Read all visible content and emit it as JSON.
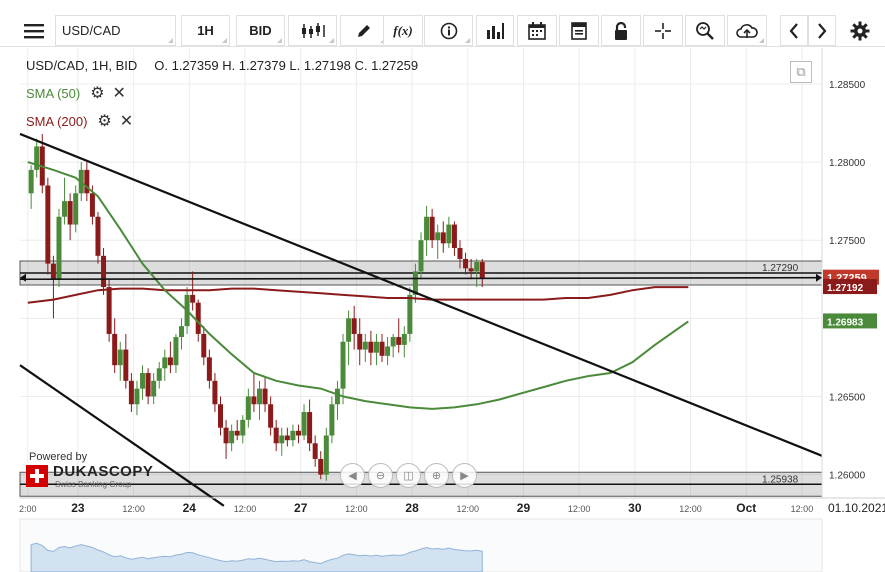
{
  "toolbar": {
    "symbol": "USD/CAD",
    "timeframe": "1H",
    "price_type": "BID",
    "function_label": "f(x)"
  },
  "header": {
    "title": "USD/CAD, 1H, BID",
    "ohlc": "O. 1.27359 H. 1.27379 L. 1.27198 C. 1.27259"
  },
  "indicators": [
    {
      "label": "SMA (50)",
      "color": "#4a8a3a"
    },
    {
      "label": "SMA (200)",
      "color": "#8b1a1a"
    }
  ],
  "branding": {
    "powered_by": "Powered by",
    "name": "DUKASCOPY",
    "tagline": "Swiss Banking Group"
  },
  "colors": {
    "bull": "#4a8a3a",
    "bear": "#8b1a1a",
    "sma50": "#4a8a3a",
    "sma200": "#8b1a1a",
    "last_price_bg": "#c0392b",
    "sma50_badge_bg": "#4a8a3a",
    "sma200_badge_bg": "#8b1a1a"
  },
  "chart_data": {
    "type": "candlestick",
    "title": "USD/CAD, 1H, BID",
    "ylim": [
      1.2585,
      1.2873
    ],
    "y_ticks": [
      "1.28500",
      "1.28000",
      "1.27500",
      "1.27000",
      "1.26500",
      "1.26000"
    ],
    "y_tick_values": [
      1.285,
      1.28,
      1.275,
      1.27,
      1.265,
      1.26
    ],
    "x_labels": [
      "2:00",
      "23",
      "12:00",
      "24",
      "12:00",
      "27",
      "12:00",
      "28",
      "12:00",
      "29",
      "12:00",
      "30",
      "12:00",
      "Oct",
      "12:00",
      "01.10.2021"
    ],
    "x_label_times": [
      0.7,
      5.2,
      10.2,
      15.2,
      20.2,
      25.2,
      30.2,
      35.2,
      40.2,
      45.2,
      50.2,
      55.2,
      60.2,
      65.2,
      70.2,
      71.5
    ],
    "x_range": [
      0,
      72
    ],
    "horizontal_levels": [
      {
        "label": "1.27290",
        "value": 1.2729
      },
      {
        "label": "1.25938",
        "value": 1.25938
      }
    ],
    "price_badges": {
      "last": "1.27259",
      "sma200": "1.27192",
      "sma50": "1.26983"
    },
    "trend_lines": [
      {
        "from": [
          0,
          1.2818
        ],
        "to": [
          72,
          1.2612
        ]
      },
      {
        "from": [
          0,
          1.267
        ],
        "to": [
          18.3,
          1.258
        ]
      },
      {
        "from": [
          0,
          1.2725
        ],
        "to": [
          72,
          1.2726
        ]
      }
    ],
    "sma50": [
      [
        0.7,
        1.28
      ],
      [
        3,
        1.2795
      ],
      [
        5,
        1.279
      ],
      [
        7,
        1.2778
      ],
      [
        9,
        1.2757
      ],
      [
        11,
        1.2735
      ],
      [
        13,
        1.2718
      ],
      [
        15,
        1.2705
      ],
      [
        17,
        1.269
      ],
      [
        19,
        1.2677
      ],
      [
        21,
        1.2665
      ],
      [
        23,
        1.266
      ],
      [
        25,
        1.2657
      ],
      [
        27,
        1.2655
      ],
      [
        29,
        1.265
      ],
      [
        31,
        1.2647
      ],
      [
        33,
        1.2645
      ],
      [
        35,
        1.2643
      ],
      [
        37,
        1.2642
      ],
      [
        39,
        1.2643
      ],
      [
        41,
        1.2645
      ],
      [
        43,
        1.2648
      ],
      [
        45,
        1.2652
      ],
      [
        47,
        1.2656
      ],
      [
        49,
        1.266
      ],
      [
        51,
        1.2663
      ],
      [
        53,
        1.2665
      ],
      [
        55,
        1.2672
      ],
      [
        57,
        1.2683
      ],
      [
        59,
        1.2693
      ],
      [
        60,
        1.2698
      ]
    ],
    "sma200": [
      [
        0.7,
        1.271
      ],
      [
        3,
        1.2712
      ],
      [
        5,
        1.2715
      ],
      [
        7,
        1.2718
      ],
      [
        9,
        1.2719
      ],
      [
        11,
        1.2719
      ],
      [
        13,
        1.2718
      ],
      [
        15,
        1.2718
      ],
      [
        17,
        1.2718
      ],
      [
        19,
        1.2719
      ],
      [
        21,
        1.2719
      ],
      [
        23,
        1.2718
      ],
      [
        25,
        1.2717
      ],
      [
        27,
        1.2716
      ],
      [
        29,
        1.2715
      ],
      [
        31,
        1.2714
      ],
      [
        33,
        1.2713
      ],
      [
        35,
        1.2713
      ],
      [
        37,
        1.2712
      ],
      [
        39,
        1.2712
      ],
      [
        41,
        1.2712
      ],
      [
        43,
        1.2712
      ],
      [
        45,
        1.2712
      ],
      [
        47,
        1.2712
      ],
      [
        49,
        1.2713
      ],
      [
        51,
        1.2713
      ],
      [
        53,
        1.2715
      ],
      [
        55,
        1.2718
      ],
      [
        57,
        1.272
      ],
      [
        60,
        1.272
      ]
    ],
    "candles": [
      [
        1.0,
        1.278,
        1.2798,
        1.277,
        1.2795
      ],
      [
        1.5,
        1.2795,
        1.2815,
        1.279,
        1.281
      ],
      [
        2.0,
        1.281,
        1.2818,
        1.278,
        1.2785
      ],
      [
        2.5,
        1.2785,
        1.279,
        1.2728,
        1.2735
      ],
      [
        3.0,
        1.2735,
        1.274,
        1.27,
        1.2725
      ],
      [
        3.5,
        1.2725,
        1.277,
        1.272,
        1.2765
      ],
      [
        4.0,
        1.2765,
        1.279,
        1.276,
        1.2775
      ],
      [
        4.5,
        1.2775,
        1.278,
        1.275,
        1.276
      ],
      [
        5.0,
        1.276,
        1.2785,
        1.2755,
        1.278
      ],
      [
        5.5,
        1.278,
        1.28,
        1.2775,
        1.2795
      ],
      [
        6.0,
        1.2795,
        1.28,
        1.2775,
        1.278
      ],
      [
        6.5,
        1.278,
        1.2785,
        1.276,
        1.2765
      ],
      [
        7.0,
        1.2765,
        1.2768,
        1.2735,
        1.274
      ],
      [
        7.5,
        1.274,
        1.2745,
        1.2715,
        1.272
      ],
      [
        8.0,
        1.272,
        1.2725,
        1.2685,
        1.269
      ],
      [
        8.5,
        1.269,
        1.27,
        1.2665,
        1.267
      ],
      [
        9.0,
        1.267,
        1.2685,
        1.266,
        1.268
      ],
      [
        9.5,
        1.268,
        1.269,
        1.2655,
        1.266
      ],
      [
        10.0,
        1.266,
        1.2665,
        1.264,
        1.2645
      ],
      [
        10.5,
        1.2645,
        1.266,
        1.2638,
        1.2655
      ],
      [
        11.0,
        1.2655,
        1.267,
        1.2648,
        1.2665
      ],
      [
        11.5,
        1.2665,
        1.2668,
        1.2645,
        1.265
      ],
      [
        12.0,
        1.265,
        1.2665,
        1.2645,
        1.266
      ],
      [
        12.5,
        1.266,
        1.2672,
        1.2655,
        1.2668
      ],
      [
        13.0,
        1.2668,
        1.268,
        1.266,
        1.2675
      ],
      [
        13.5,
        1.2675,
        1.2685,
        1.2665,
        1.267
      ],
      [
        14.0,
        1.267,
        1.269,
        1.2665,
        1.2688
      ],
      [
        14.5,
        1.2688,
        1.27,
        1.268,
        1.2695
      ],
      [
        15.0,
        1.2695,
        1.272,
        1.269,
        1.2715
      ],
      [
        15.5,
        1.2715,
        1.273,
        1.2705,
        1.271
      ],
      [
        16.0,
        1.271,
        1.2712,
        1.2685,
        1.269
      ],
      [
        16.5,
        1.269,
        1.2695,
        1.267,
        1.2675
      ],
      [
        17.0,
        1.2675,
        1.268,
        1.2655,
        1.266
      ],
      [
        17.5,
        1.266,
        1.2665,
        1.264,
        1.2645
      ],
      [
        18.0,
        1.2645,
        1.265,
        1.2625,
        1.263
      ],
      [
        18.5,
        1.263,
        1.2635,
        1.261,
        1.262
      ],
      [
        19.0,
        1.262,
        1.2632,
        1.2615,
        1.2628
      ],
      [
        19.5,
        1.2628,
        1.2635,
        1.2622,
        1.2625
      ],
      [
        20.0,
        1.2625,
        1.2638,
        1.262,
        1.2635
      ],
      [
        20.5,
        1.2635,
        1.2655,
        1.263,
        1.265
      ],
      [
        21.0,
        1.265,
        1.2665,
        1.264,
        1.2645
      ],
      [
        21.5,
        1.2645,
        1.266,
        1.2635,
        1.2655
      ],
      [
        22.0,
        1.2655,
        1.2662,
        1.264,
        1.2645
      ],
      [
        22.5,
        1.2645,
        1.265,
        1.2625,
        1.263
      ],
      [
        23.0,
        1.263,
        1.2635,
        1.2615,
        1.262
      ],
      [
        23.5,
        1.262,
        1.263,
        1.2612,
        1.2625
      ],
      [
        24.0,
        1.2625,
        1.263,
        1.2618,
        1.2622
      ],
      [
        24.5,
        1.2622,
        1.2632,
        1.2618,
        1.2628
      ],
      [
        25.0,
        1.2628,
        1.2632,
        1.262,
        1.2625
      ],
      [
        25.5,
        1.2625,
        1.2645,
        1.2622,
        1.264
      ],
      [
        26.0,
        1.264,
        1.2648,
        1.2615,
        1.262
      ],
      [
        26.5,
        1.262,
        1.2625,
        1.2605,
        1.261
      ],
      [
        27.0,
        1.261,
        1.2615,
        1.2597,
        1.26
      ],
      [
        27.5,
        1.26,
        1.263,
        1.2596,
        1.2625
      ],
      [
        28.0,
        1.2625,
        1.265,
        1.262,
        1.2645
      ],
      [
        28.5,
        1.2645,
        1.266,
        1.2635,
        1.2655
      ],
      [
        29.0,
        1.2655,
        1.269,
        1.2645,
        1.2685
      ],
      [
        29.5,
        1.2685,
        1.2705,
        1.267,
        1.27
      ],
      [
        30.0,
        1.27,
        1.2708,
        1.268,
        1.269
      ],
      [
        30.5,
        1.269,
        1.27,
        1.267,
        1.268
      ],
      [
        31.0,
        1.268,
        1.269,
        1.2672,
        1.2685
      ],
      [
        31.5,
        1.2685,
        1.2692,
        1.267,
        1.2678
      ],
      [
        32.0,
        1.2678,
        1.269,
        1.267,
        1.2685
      ],
      [
        32.5,
        1.2685,
        1.269,
        1.2672,
        1.2676
      ],
      [
        33.0,
        1.2676,
        1.2688,
        1.267,
        1.2682
      ],
      [
        33.5,
        1.2682,
        1.269,
        1.2675,
        1.2688
      ],
      [
        34.0,
        1.2688,
        1.27,
        1.2678,
        1.2683
      ],
      [
        34.5,
        1.2683,
        1.2695,
        1.2675,
        1.269
      ],
      [
        35.0,
        1.269,
        1.272,
        1.2685,
        1.2715
      ],
      [
        35.5,
        1.2715,
        1.2735,
        1.271,
        1.273
      ],
      [
        36.0,
        1.273,
        1.2755,
        1.2725,
        1.275
      ],
      [
        36.5,
        1.275,
        1.2772,
        1.274,
        1.2765
      ],
      [
        37.0,
        1.2765,
        1.277,
        1.2745,
        1.275
      ],
      [
        37.5,
        1.275,
        1.276,
        1.2738,
        1.2755
      ],
      [
        38.0,
        1.2755,
        1.2762,
        1.2742,
        1.2748
      ],
      [
        38.5,
        1.2748,
        1.2765,
        1.2745,
        1.276
      ],
      [
        39.0,
        1.276,
        1.2762,
        1.274,
        1.2745
      ],
      [
        39.5,
        1.2745,
        1.275,
        1.2732,
        1.2738
      ],
      [
        40.0,
        1.2738,
        1.2742,
        1.2728,
        1.2732
      ],
      [
        40.5,
        1.2732,
        1.2738,
        1.2725,
        1.273
      ],
      [
        41.0,
        1.273,
        1.2738,
        1.272,
        1.2736
      ],
      [
        41.5,
        1.2736,
        1.2738,
        1.272,
        1.2726
      ]
    ]
  }
}
